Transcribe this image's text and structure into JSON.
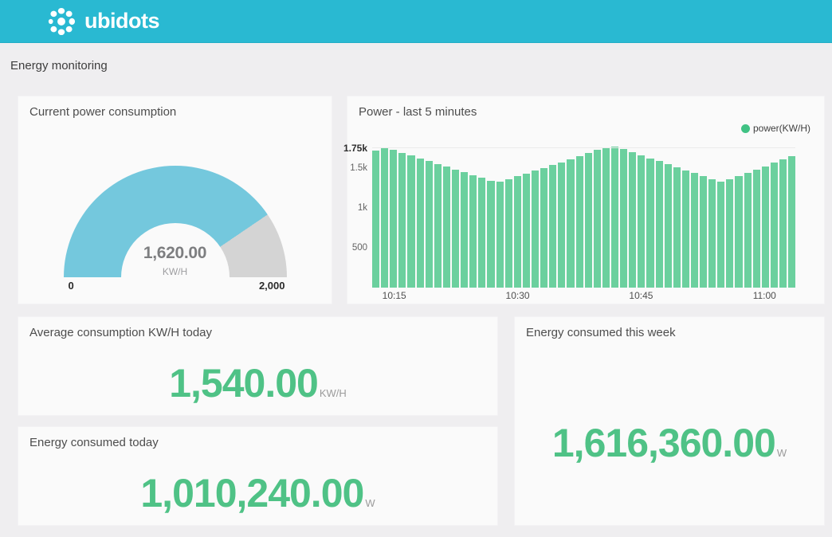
{
  "header": {
    "brand": "ubidots"
  },
  "page": {
    "title": "Energy monitoring"
  },
  "colors": {
    "brand_teal": "#29b9d2",
    "gauge_blue": "#74c8dd",
    "gauge_track": "#d4d4d4",
    "bar_green": "#63cd99",
    "legend_green": "#40c284",
    "metric_green": "#4fc286"
  },
  "gauge": {
    "title": "Current power consumption",
    "value": "1,620.00",
    "unit": "KW/H",
    "min_label": "0",
    "max_label": "2,000",
    "value_number": 1620,
    "min": 0,
    "max": 2000
  },
  "metrics": [
    {
      "title": "Average consumption KW/H today",
      "value": "1,540.00",
      "unit": "KW/H"
    },
    {
      "title": "Energy consumed today",
      "value": "1,010,240.00",
      "unit": "W"
    },
    {
      "title": "Energy consumed this week",
      "value": "1,616,360.00",
      "unit": "W"
    }
  ],
  "chart_data": {
    "type": "bar",
    "title": "Power - last 5 minutes",
    "legend": {
      "label": "power(KW/H)",
      "position": "top-right"
    },
    "xlabel": "",
    "ylabel": "",
    "ylim": [
      0,
      1800
    ],
    "grid": "horizontal line at 1750 only",
    "y_ticks": [
      {
        "label": "1.75k",
        "value": 1750,
        "bold": true
      },
      {
        "label": "1.5k",
        "value": 1500,
        "bold": false
      },
      {
        "label": "1k",
        "value": 1000,
        "bold": false
      },
      {
        "label": "500",
        "value": 500,
        "bold": false
      }
    ],
    "x_ticks": [
      {
        "label": "10:15",
        "bar_index": 3
      },
      {
        "label": "10:30",
        "bar_index": 17
      },
      {
        "label": "10:45",
        "bar_index": 31
      },
      {
        "label": "11:00",
        "bar_index": 45
      }
    ],
    "series": [
      {
        "name": "power(KW/H)",
        "values": [
          1720,
          1765,
          1730,
          1695,
          1660,
          1625,
          1590,
          1555,
          1520,
          1485,
          1450,
          1415,
          1380,
          1345,
          1335,
          1365,
          1400,
          1435,
          1470,
          1505,
          1540,
          1575,
          1610,
          1650,
          1690,
          1730,
          1765,
          1770,
          1740,
          1700,
          1665,
          1625,
          1590,
          1550,
          1515,
          1475,
          1440,
          1400,
          1365,
          1335,
          1365,
          1400,
          1440,
          1480,
          1525,
          1570,
          1610,
          1650
        ]
      }
    ]
  }
}
